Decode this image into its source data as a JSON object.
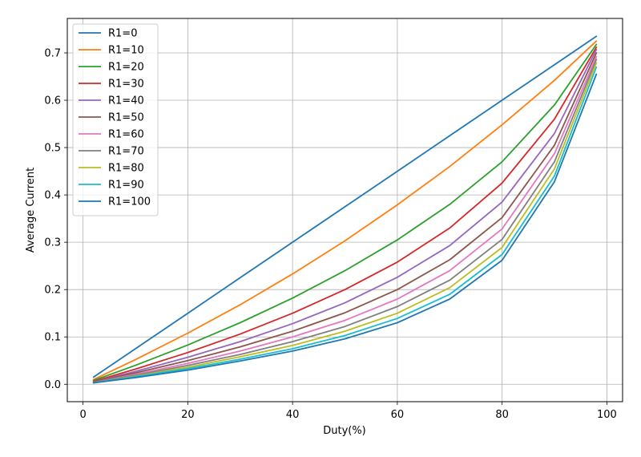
{
  "chart_data": {
    "type": "line",
    "title": "",
    "xlabel": "Duty(%)",
    "ylabel": "Average Current",
    "xlim": [
      -3,
      103
    ],
    "ylim": [
      -0.0368,
      0.7728
    ],
    "xticks": [
      0,
      20,
      40,
      60,
      80,
      100
    ],
    "yticks": [
      0.0,
      0.1,
      0.2,
      0.3,
      0.4,
      0.5,
      0.6,
      0.7
    ],
    "grid": true,
    "legend_position": "top-left",
    "x": [
      2,
      10,
      20,
      30,
      40,
      50,
      60,
      70,
      80,
      90,
      98
    ],
    "series": [
      {
        "name": "R1=0",
        "color": "#1f77b4",
        "values": [
          0.015,
          0.075,
          0.15,
          0.225,
          0.3,
          0.375,
          0.45,
          0.525,
          0.6,
          0.675,
          0.735
        ]
      },
      {
        "name": "R1=10",
        "color": "#ff7f0e",
        "values": [
          0.01,
          0.052,
          0.108,
          0.168,
          0.233,
          0.303,
          0.379,
          0.46,
          0.548,
          0.642,
          0.725
        ]
      },
      {
        "name": "R1=20",
        "color": "#2ca02c",
        "values": [
          0.008,
          0.04,
          0.083,
          0.13,
          0.182,
          0.24,
          0.305,
          0.38,
          0.47,
          0.59,
          0.718
        ]
      },
      {
        "name": "R1=30",
        "color": "#d62728",
        "values": [
          0.006,
          0.032,
          0.067,
          0.106,
          0.15,
          0.2,
          0.258,
          0.33,
          0.425,
          0.56,
          0.712
        ]
      },
      {
        "name": "R1=40",
        "color": "#9467bd",
        "values": [
          0.005,
          0.027,
          0.057,
          0.09,
          0.128,
          0.172,
          0.226,
          0.293,
          0.385,
          0.53,
          0.707
        ]
      },
      {
        "name": "R1=50",
        "color": "#8c564b",
        "values": [
          0.005,
          0.024,
          0.05,
          0.079,
          0.112,
          0.151,
          0.2,
          0.263,
          0.352,
          0.505,
          0.7
        ]
      },
      {
        "name": "R1=60",
        "color": "#e377c2",
        "values": [
          0.004,
          0.021,
          0.044,
          0.07,
          0.1,
          0.135,
          0.18,
          0.24,
          0.328,
          0.487,
          0.692
        ]
      },
      {
        "name": "R1=70",
        "color": "#7f7f7f",
        "values": [
          0.004,
          0.019,
          0.04,
          0.063,
          0.09,
          0.122,
          0.164,
          0.22,
          0.306,
          0.47,
          0.686
        ]
      },
      {
        "name": "R1=80",
        "color": "#bcbd22",
        "values": [
          0.003,
          0.017,
          0.036,
          0.058,
          0.082,
          0.112,
          0.15,
          0.204,
          0.289,
          0.455,
          0.679
        ]
      },
      {
        "name": "R1=90",
        "color": "#17becf",
        "values": [
          0.003,
          0.016,
          0.033,
          0.053,
          0.075,
          0.103,
          0.139,
          0.19,
          0.274,
          0.44,
          0.67
        ]
      },
      {
        "name": "R1=100",
        "color": "#1f77b4",
        "values": [
          0.003,
          0.014,
          0.03,
          0.049,
          0.07,
          0.096,
          0.13,
          0.18,
          0.262,
          0.428,
          0.655
        ]
      }
    ]
  }
}
